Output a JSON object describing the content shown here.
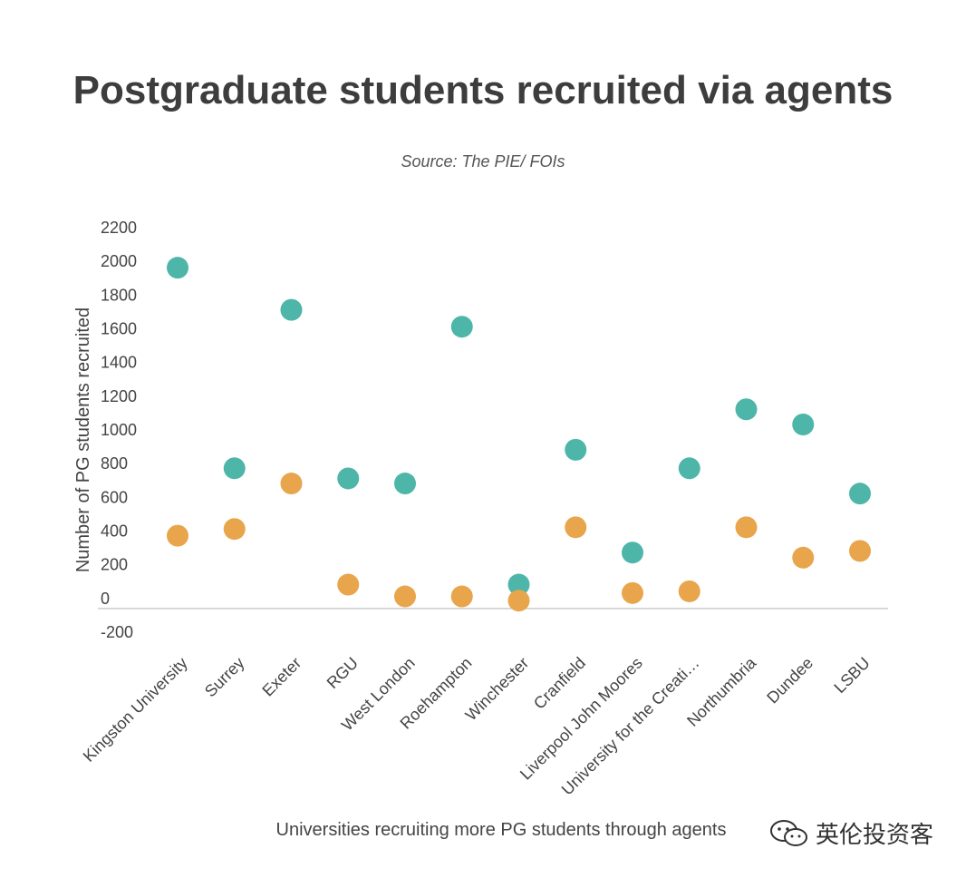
{
  "chart_data": {
    "type": "scatter",
    "title": "Postgraduate students recruited via agents",
    "subtitle": "Source: The PIE/ FOIs",
    "xlabel": "Universities recruiting more PG students through agents",
    "ylabel": "Number of PG students recruited",
    "categories": [
      "Kingston University",
      "Surrey",
      "Exeter",
      "RGU",
      "West London",
      "Roehampton",
      "Winchester",
      "Cranfield",
      "Liverpool John Moores",
      "University for the Creati…",
      "Northumbria",
      "Dundee",
      "LSBU"
    ],
    "ylim": [
      -200,
      2200
    ],
    "yticks": [
      2200,
      2000,
      1800,
      1600,
      1400,
      1200,
      1000,
      800,
      600,
      400,
      200,
      0,
      -200
    ],
    "grid": false,
    "series": [
      {
        "color": "#4db6a9",
        "values": [
          2000,
          810,
          1750,
          750,
          720,
          1650,
          120,
          920,
          310,
          810,
          1160,
          1070,
          660
        ]
      },
      {
        "color": "#e8a54b",
        "values": [
          410,
          450,
          720,
          120,
          50,
          50,
          25,
          460,
          70,
          80,
          460,
          280,
          320
        ]
      }
    ]
  },
  "watermark": {
    "text": "英伦投资客",
    "icon": "wechat-icon"
  }
}
